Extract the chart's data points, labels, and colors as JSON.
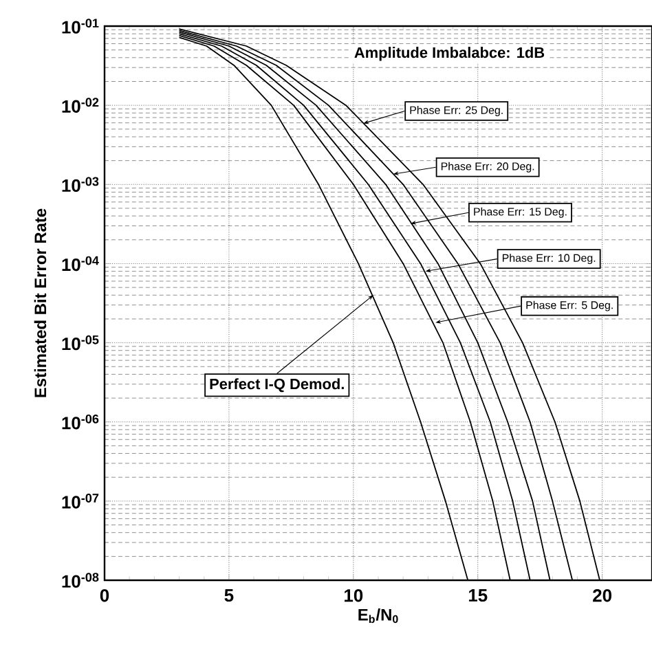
{
  "chart_data": {
    "type": "line",
    "xlabel": "E$_{b}$/N$_{0}$",
    "ylabel": "Estimated Bit Error Rate",
    "log": true,
    "grid": true,
    "xlim": [
      0,
      22
    ],
    "xticks": [
      0,
      5,
      10,
      15,
      20
    ],
    "ylim": [
      1e-08,
      0.1
    ],
    "yticks": [
      {
        "value": 0.1,
        "label": "10$^{-01}$"
      },
      {
        "value": 0.01,
        "label": "10$^{-02}$"
      },
      {
        "value": 0.001,
        "label": "10$^{-03}$"
      },
      {
        "value": 0.0001,
        "label": "10$^{-04}$"
      },
      {
        "value": 1e-05,
        "label": "10$^{-05}$"
      },
      {
        "value": 1e-06,
        "label": "10$^{-06}$"
      },
      {
        "value": 1e-07,
        "label": "10$^{-07}$"
      },
      {
        "value": 1e-08,
        "label": "10$^{-08}$"
      }
    ],
    "series": [
      {
        "color": "#000000",
        "x": [
          3.0,
          4.1,
          5.2,
          6.7,
          8.6,
          10.2,
          11.6,
          12.7,
          13.7,
          14.6
        ],
        "values": [
          0.072,
          0.056,
          0.032,
          0.01,
          0.001,
          0.0001,
          1e-05,
          1e-06,
          1e-07,
          1e-08
        ]
      },
      {
        "color": "#000000",
        "x": [
          3.0,
          4.4,
          5.7,
          7.6,
          10.0,
          12.0,
          13.6,
          14.7,
          15.6,
          16.3
        ],
        "values": [
          0.076,
          0.056,
          0.032,
          0.01,
          0.001,
          0.0001,
          1e-05,
          1e-06,
          1e-07,
          1e-08
        ]
      },
      {
        "color": "#000000",
        "x": [
          3.0,
          4.7,
          6.1,
          8.0,
          10.6,
          12.7,
          14.3,
          15.5,
          16.4,
          17.1
        ],
        "values": [
          0.08,
          0.056,
          0.032,
          0.01,
          0.001,
          0.0001,
          1e-05,
          1e-06,
          1e-07,
          1e-08
        ]
      },
      {
        "color": "#000000",
        "x": [
          3.0,
          5.0,
          6.5,
          8.5,
          11.3,
          13.4,
          15.0,
          16.2,
          17.2,
          17.9
        ],
        "values": [
          0.084,
          0.056,
          0.032,
          0.01,
          0.001,
          0.0001,
          1e-05,
          1e-06,
          1e-07,
          1e-08
        ]
      },
      {
        "color": "#000000",
        "x": [
          3.0,
          5.3,
          6.9,
          9.0,
          12.0,
          14.2,
          15.9,
          17.1,
          18.0,
          18.8
        ],
        "values": [
          0.088,
          0.056,
          0.032,
          0.01,
          0.001,
          0.0001,
          1e-05,
          1e-06,
          1e-07,
          1e-08
        ]
      },
      {
        "color": "#000000",
        "x": [
          3.0,
          5.7,
          7.3,
          9.7,
          12.8,
          15.1,
          16.8,
          18.1,
          19.1,
          19.9
        ],
        "values": [
          0.092,
          0.056,
          0.032,
          0.01,
          0.001,
          0.0001,
          1e-05,
          1e-06,
          1e-07,
          1e-08
        ]
      }
    ],
    "annotations": [
      "Amplitude Imbalabce: 1dB",
      {
        "text": "Phase Err: 25 Deg.",
        "x": 10.4,
        "y": 0.0059
      },
      {
        "text": "Phase Err: 20 Deg.",
        "x": 11.6,
        "y": 0.00135
      },
      {
        "text": "Phase Err: 15 Deg.",
        "x": 12.3,
        "y": 0.00032
      },
      {
        "text": "Phase Err: 10 Deg.",
        "x": 12.9,
        "y": 8e-05
      },
      {
        "text": "Phase Err: 5 Deg.",
        "x": 13.3,
        "y": 1.8e-05
      },
      {
        "text": "Perfect I-Q Demod.",
        "x": 10.8,
        "y": 4e-05
      }
    ]
  }
}
